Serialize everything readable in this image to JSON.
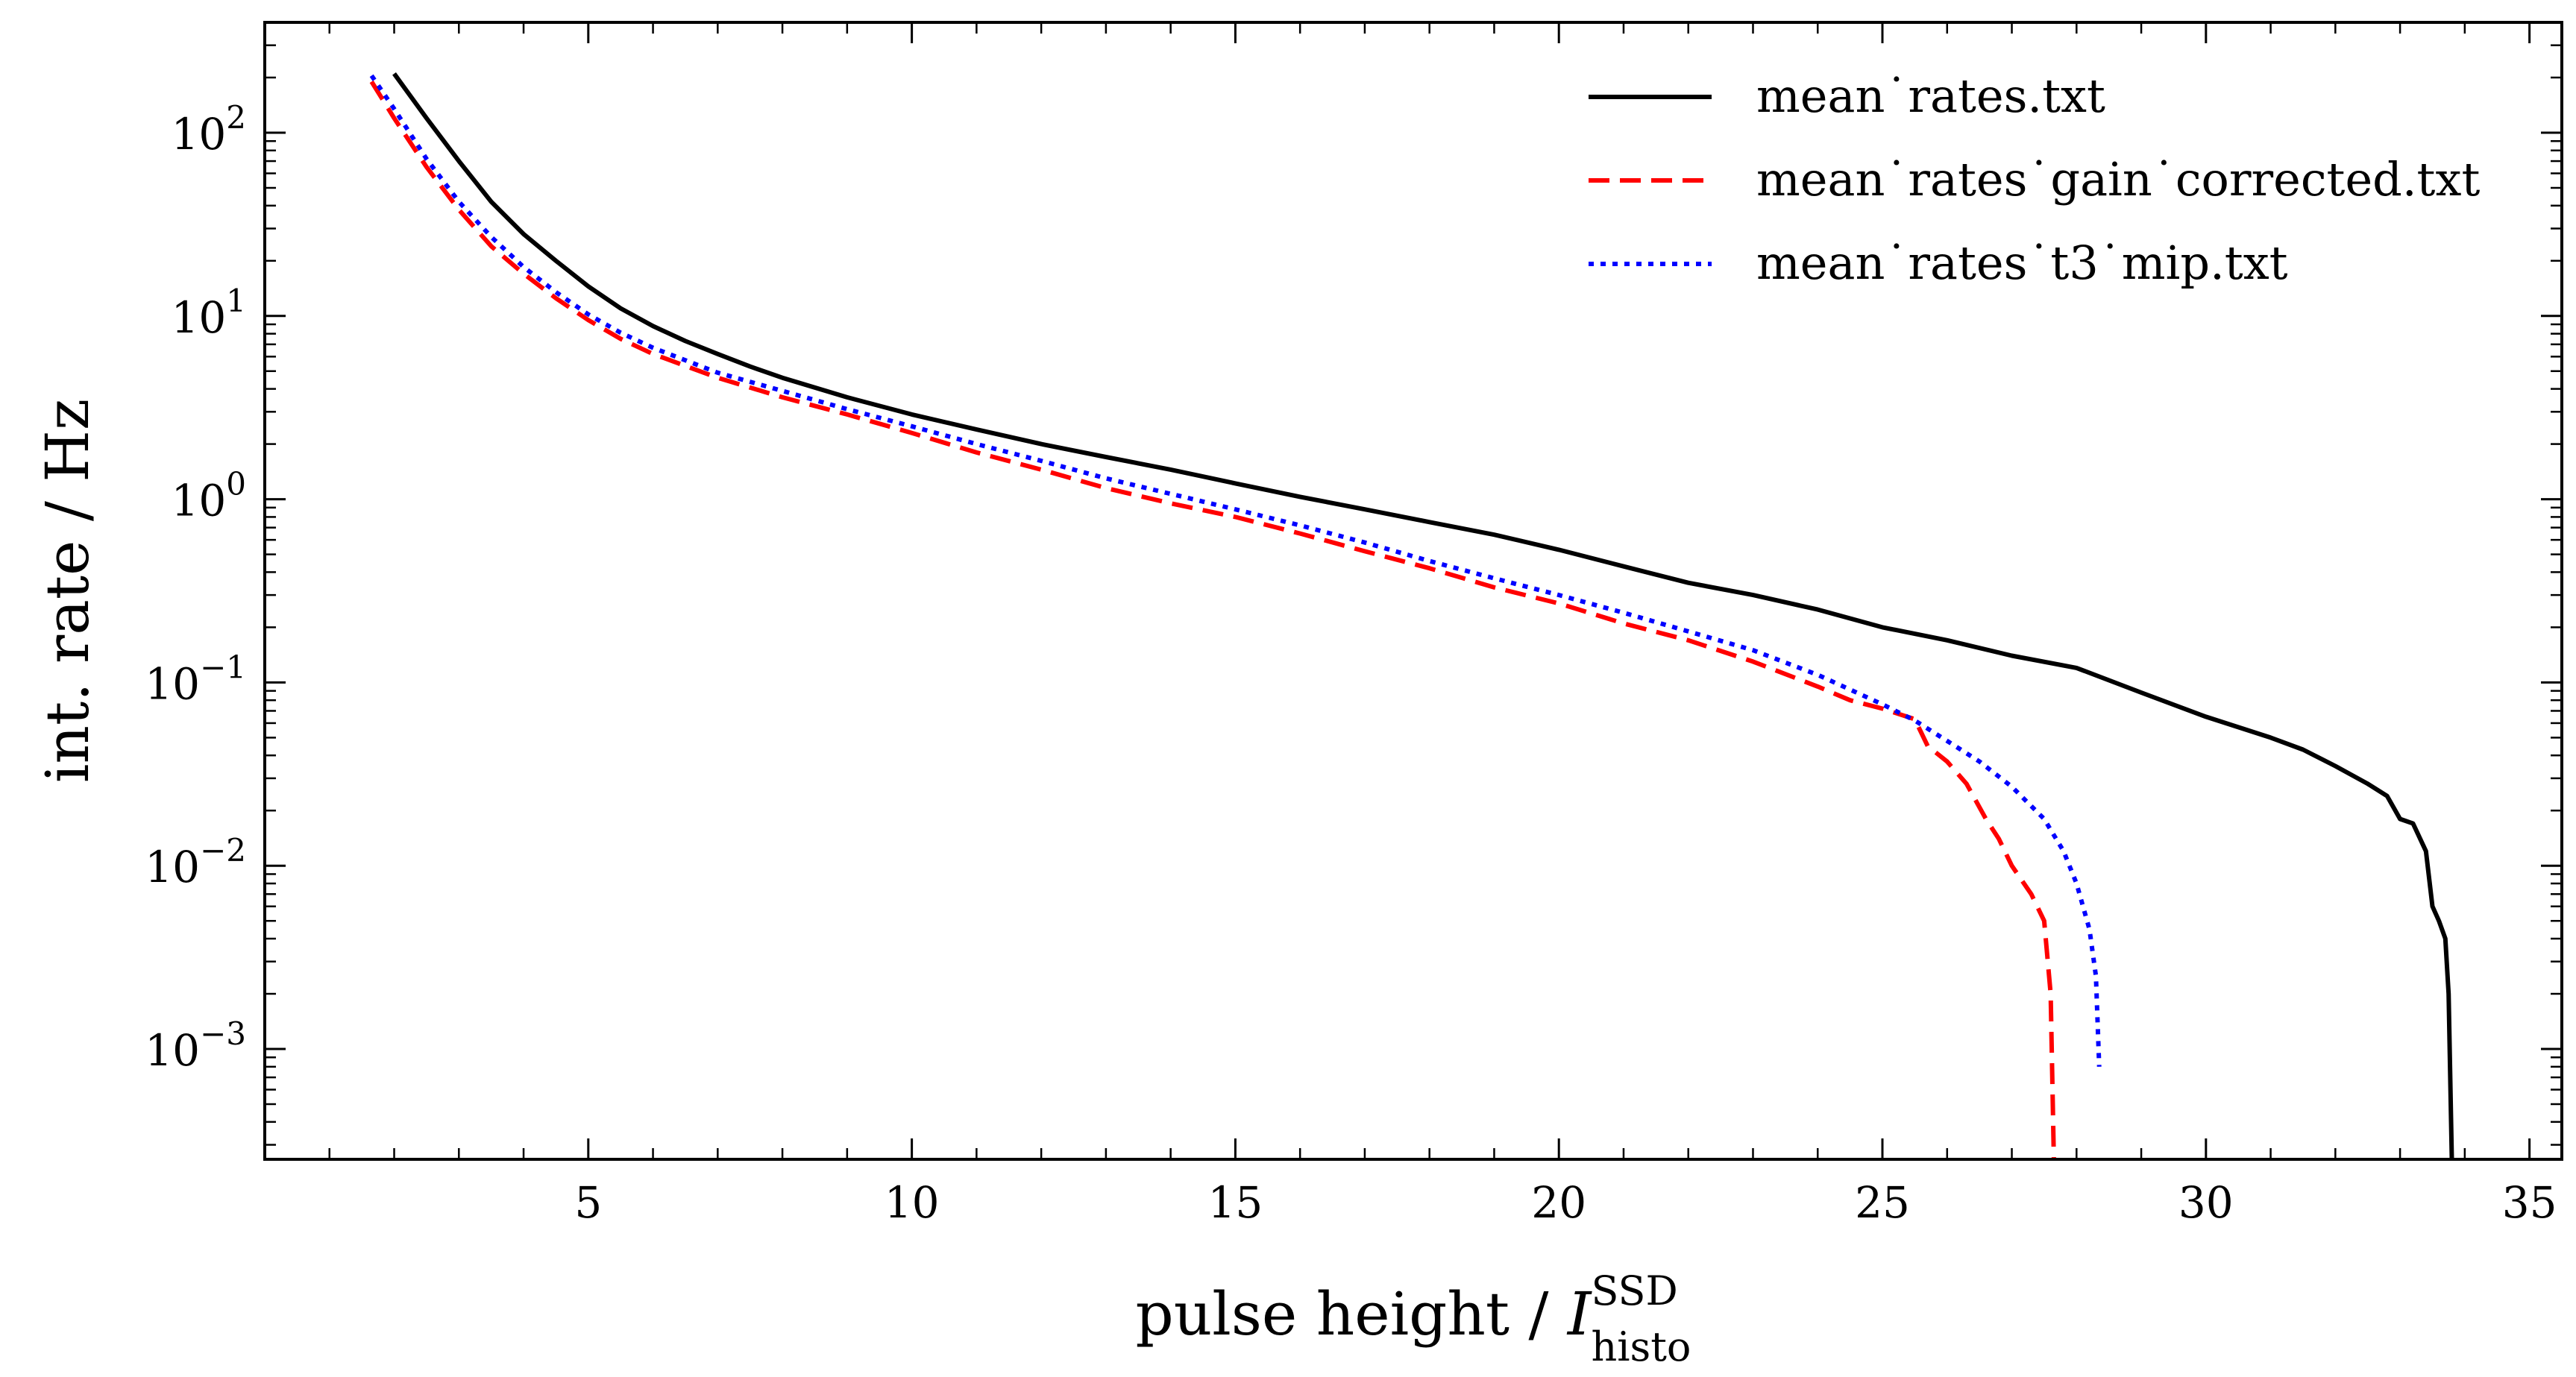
{
  "chart_data": {
    "type": "line",
    "title": "",
    "xlabel": {
      "main": "pulse height / ",
      "symbol": "I",
      "superscript": "SSD",
      "subscript": "histo"
    },
    "ylabel": "int. rate / Hz",
    "xlim": [
      0,
      35.5
    ],
    "ylim": [
      0.00025,
      400
    ],
    "yscale": "log",
    "grid": false,
    "legend_position": "top-right",
    "x_ticks": [
      {
        "value": 5,
        "label": "5"
      },
      {
        "value": 10,
        "label": "10"
      },
      {
        "value": 15,
        "label": "15"
      },
      {
        "value": 20,
        "label": "20"
      },
      {
        "value": 25,
        "label": "25"
      },
      {
        "value": 30,
        "label": "30"
      },
      {
        "value": 35,
        "label": "35"
      }
    ],
    "y_ticks": [
      {
        "value": 0.001,
        "base": "10",
        "exp": "−3"
      },
      {
        "value": 0.01,
        "base": "10",
        "exp": "−2"
      },
      {
        "value": 0.1,
        "base": "10",
        "exp": "−1"
      },
      {
        "value": 1,
        "base": "10",
        "exp": "0"
      },
      {
        "value": 10,
        "base": "10",
        "exp": "1"
      },
      {
        "value": 100,
        "base": "10",
        "exp": "2"
      }
    ],
    "series": [
      {
        "name": "mean˙rates.txt",
        "color": "#000000",
        "style": "solid",
        "points": [
          [
            2.0,
            210
          ],
          [
            2.5,
            120
          ],
          [
            3.0,
            70
          ],
          [
            3.5,
            42
          ],
          [
            4.0,
            28
          ],
          [
            4.5,
            20
          ],
          [
            5.0,
            14.5
          ],
          [
            5.5,
            11
          ],
          [
            6.0,
            8.8
          ],
          [
            6.5,
            7.3
          ],
          [
            7.0,
            6.2
          ],
          [
            7.5,
            5.3
          ],
          [
            8.0,
            4.6
          ],
          [
            9.0,
            3.6
          ],
          [
            10.0,
            2.9
          ],
          [
            11.0,
            2.4
          ],
          [
            12.0,
            2.0
          ],
          [
            13.0,
            1.7
          ],
          [
            14.0,
            1.45
          ],
          [
            15.0,
            1.22
          ],
          [
            16.0,
            1.03
          ],
          [
            17.0,
            0.88
          ],
          [
            18.0,
            0.75
          ],
          [
            19.0,
            0.64
          ],
          [
            20.0,
            0.53
          ],
          [
            21.0,
            0.43
          ],
          [
            22.0,
            0.35
          ],
          [
            23.0,
            0.3
          ],
          [
            24.0,
            0.25
          ],
          [
            25.0,
            0.2
          ],
          [
            26.0,
            0.17
          ],
          [
            27.0,
            0.14
          ],
          [
            28.0,
            0.12
          ],
          [
            29.0,
            0.088
          ],
          [
            30.0,
            0.065
          ],
          [
            31.0,
            0.05
          ],
          [
            31.5,
            0.043
          ],
          [
            32.0,
            0.035
          ],
          [
            32.5,
            0.028
          ],
          [
            32.8,
            0.024
          ],
          [
            33.0,
            0.018
          ],
          [
            33.2,
            0.017
          ],
          [
            33.4,
            0.012
          ],
          [
            33.5,
            0.006
          ],
          [
            33.6,
            0.005
          ],
          [
            33.7,
            0.004
          ],
          [
            33.75,
            0.002
          ],
          [
            33.8,
            0.00025
          ]
        ]
      },
      {
        "name": "mean˙rates˙gain˙corrected.txt",
        "color": "#ff0000",
        "style": "dashed",
        "points": [
          [
            1.65,
            190
          ],
          [
            2.0,
            120
          ],
          [
            2.5,
            65
          ],
          [
            3.0,
            38
          ],
          [
            3.5,
            24
          ],
          [
            4.0,
            17
          ],
          [
            4.5,
            12.5
          ],
          [
            5.0,
            9.5
          ],
          [
            5.5,
            7.5
          ],
          [
            6.0,
            6.2
          ],
          [
            7.0,
            4.6
          ],
          [
            8.0,
            3.6
          ],
          [
            9.0,
            2.9
          ],
          [
            10.0,
            2.3
          ],
          [
            11.0,
            1.8
          ],
          [
            12.0,
            1.45
          ],
          [
            13.0,
            1.15
          ],
          [
            14.0,
            0.95
          ],
          [
            15.0,
            0.8
          ],
          [
            16.0,
            0.65
          ],
          [
            17.0,
            0.52
          ],
          [
            18.0,
            0.42
          ],
          [
            19.0,
            0.33
          ],
          [
            20.0,
            0.27
          ],
          [
            21.0,
            0.21
          ],
          [
            22.0,
            0.17
          ],
          [
            23.0,
            0.13
          ],
          [
            24.0,
            0.095
          ],
          [
            24.5,
            0.08
          ],
          [
            25.0,
            0.072
          ],
          [
            25.5,
            0.063
          ],
          [
            25.7,
            0.045
          ],
          [
            26.0,
            0.037
          ],
          [
            26.3,
            0.028
          ],
          [
            26.6,
            0.018
          ],
          [
            26.8,
            0.014
          ],
          [
            27.0,
            0.01
          ],
          [
            27.3,
            0.007
          ],
          [
            27.5,
            0.005
          ],
          [
            27.6,
            0.002
          ],
          [
            27.65,
            0.00025
          ]
        ]
      },
      {
        "name": "mean˙rates˙t3˙mip.txt",
        "color": "#0000ff",
        "style": "dotted",
        "points": [
          [
            1.65,
            205
          ],
          [
            2.0,
            135
          ],
          [
            2.5,
            72
          ],
          [
            3.0,
            42
          ],
          [
            3.5,
            27
          ],
          [
            4.0,
            18.5
          ],
          [
            4.5,
            13.5
          ],
          [
            5.0,
            10.2
          ],
          [
            5.5,
            8.1
          ],
          [
            6.0,
            6.7
          ],
          [
            7.0,
            4.9
          ],
          [
            8.0,
            3.9
          ],
          [
            9.0,
            3.1
          ],
          [
            10.0,
            2.5
          ],
          [
            11.0,
            2.0
          ],
          [
            12.0,
            1.62
          ],
          [
            13.0,
            1.3
          ],
          [
            14.0,
            1.07
          ],
          [
            15.0,
            0.88
          ],
          [
            16.0,
            0.72
          ],
          [
            17.0,
            0.58
          ],
          [
            18.0,
            0.46
          ],
          [
            19.0,
            0.37
          ],
          [
            20.0,
            0.3
          ],
          [
            21.0,
            0.24
          ],
          [
            22.0,
            0.19
          ],
          [
            23.0,
            0.15
          ],
          [
            24.0,
            0.11
          ],
          [
            25.0,
            0.076
          ],
          [
            25.5,
            0.062
          ],
          [
            26.0,
            0.048
          ],
          [
            26.5,
            0.037
          ],
          [
            27.0,
            0.027
          ],
          [
            27.5,
            0.018
          ],
          [
            27.8,
            0.012
          ],
          [
            28.0,
            0.008
          ],
          [
            28.2,
            0.0045
          ],
          [
            28.3,
            0.0025
          ],
          [
            28.35,
            0.0008
          ]
        ]
      }
    ]
  }
}
